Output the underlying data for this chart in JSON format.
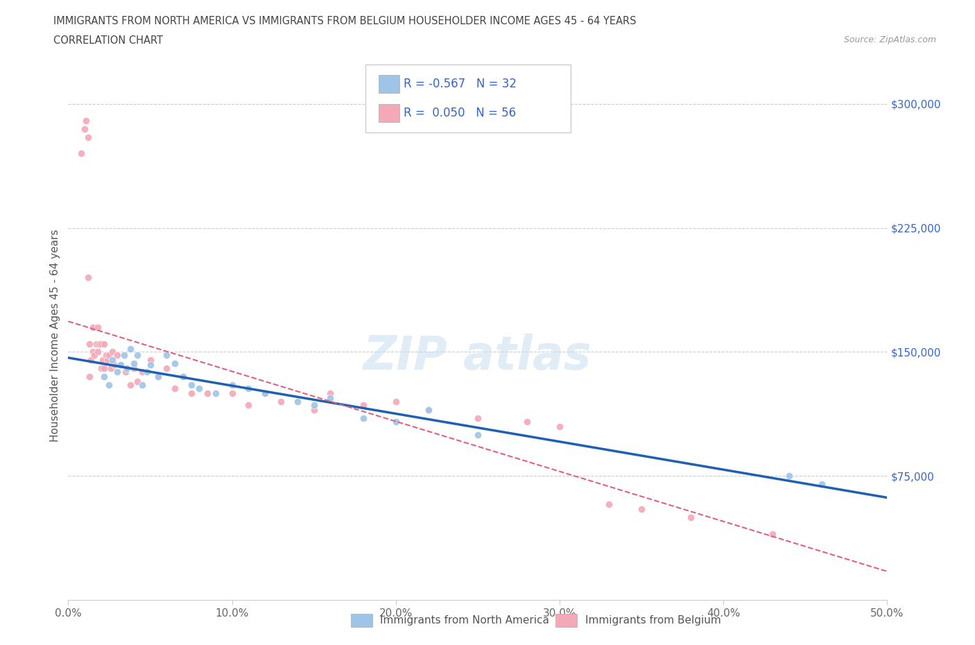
{
  "title_line1": "IMMIGRANTS FROM NORTH AMERICA VS IMMIGRANTS FROM BELGIUM HOUSEHOLDER INCOME AGES 45 - 64 YEARS",
  "title_line2": "CORRELATION CHART",
  "source_text": "Source: ZipAtlas.com",
  "ylabel": "Householder Income Ages 45 - 64 years",
  "xlim": [
    0.0,
    0.5
  ],
  "ylim": [
    0,
    320000
  ],
  "xtick_labels": [
    "0.0%",
    "10.0%",
    "20.0%",
    "30.0%",
    "40.0%",
    "50.0%"
  ],
  "xtick_vals": [
    0.0,
    0.1,
    0.2,
    0.3,
    0.4,
    0.5
  ],
  "ytick_labels": [
    "$75,000",
    "$150,000",
    "$225,000",
    "$300,000"
  ],
  "ytick_vals": [
    75000,
    150000,
    225000,
    300000
  ],
  "north_america_color": "#9ec4e8",
  "belgium_color": "#f4a8b8",
  "north_america_line_color": "#2060b0",
  "belgium_line_color": "#e06080",
  "grid_color": "#cccccc",
  "background_color": "#ffffff",
  "R_north_america": -0.567,
  "N_north_america": 32,
  "R_belgium": 0.05,
  "N_belgium": 56,
  "legend_text_color": "#3366cc",
  "na_x": [
    0.022,
    0.025,
    0.027,
    0.03,
    0.032,
    0.034,
    0.036,
    0.038,
    0.04,
    0.042,
    0.045,
    0.048,
    0.05,
    0.055,
    0.06,
    0.065,
    0.07,
    0.075,
    0.08,
    0.09,
    0.1,
    0.11,
    0.12,
    0.14,
    0.15,
    0.16,
    0.18,
    0.2,
    0.22,
    0.25,
    0.44,
    0.46
  ],
  "na_y": [
    135000,
    130000,
    145000,
    138000,
    142000,
    148000,
    140000,
    152000,
    143000,
    148000,
    130000,
    138000,
    142000,
    135000,
    148000,
    143000,
    135000,
    130000,
    128000,
    125000,
    130000,
    128000,
    125000,
    120000,
    118000,
    122000,
    110000,
    108000,
    115000,
    100000,
    75000,
    70000
  ],
  "be_x": [
    0.008,
    0.01,
    0.011,
    0.012,
    0.012,
    0.013,
    0.013,
    0.014,
    0.015,
    0.015,
    0.016,
    0.017,
    0.018,
    0.018,
    0.019,
    0.02,
    0.02,
    0.021,
    0.022,
    0.022,
    0.023,
    0.024,
    0.025,
    0.026,
    0.027,
    0.028,
    0.03,
    0.032,
    0.035,
    0.038,
    0.04,
    0.042,
    0.045,
    0.05,
    0.055,
    0.06,
    0.065,
    0.07,
    0.075,
    0.085,
    0.1,
    0.11,
    0.12,
    0.13,
    0.15,
    0.16,
    0.18,
    0.2,
    0.22,
    0.25,
    0.28,
    0.3,
    0.33,
    0.35,
    0.38,
    0.43
  ],
  "be_y": [
    270000,
    285000,
    290000,
    280000,
    195000,
    135000,
    155000,
    145000,
    150000,
    165000,
    148000,
    155000,
    150000,
    165000,
    155000,
    140000,
    155000,
    145000,
    155000,
    140000,
    148000,
    145000,
    148000,
    140000,
    150000,
    142000,
    148000,
    142000,
    138000,
    130000,
    140000,
    132000,
    138000,
    145000,
    135000,
    140000,
    128000,
    135000,
    125000,
    125000,
    125000,
    118000,
    125000,
    120000,
    115000,
    125000,
    118000,
    120000,
    115000,
    110000,
    108000,
    105000,
    58000,
    55000,
    50000,
    40000
  ]
}
